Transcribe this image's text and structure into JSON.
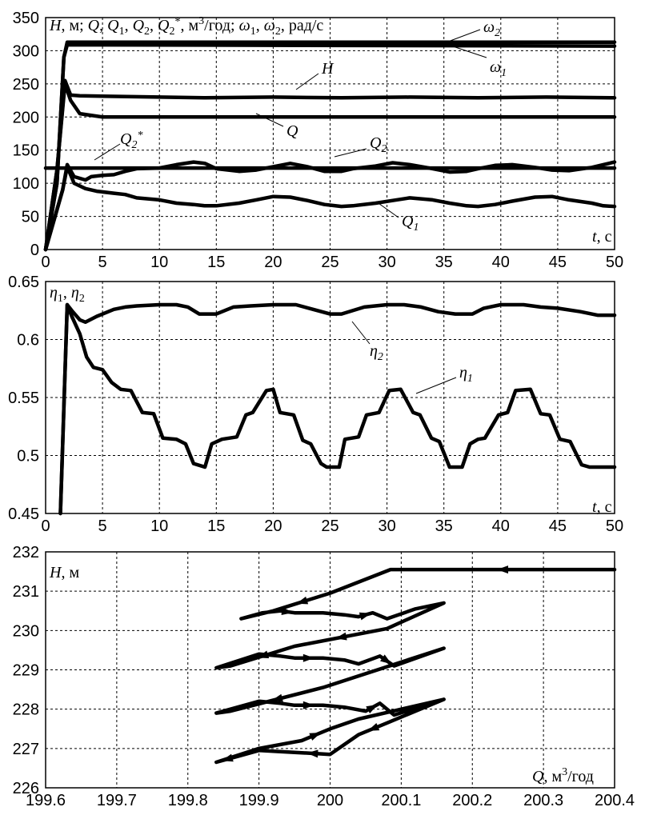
{
  "chart_data": [
    {
      "type": "line",
      "ylabel": "H, м; Q, Q1, Q2, Q2*, м3/год; ω1, ω2, рад/с",
      "xlabel": "t, с",
      "xlim": [
        0,
        50
      ],
      "ylim": [
        0,
        350
      ],
      "xticks": [
        "0",
        "5",
        "10",
        "15",
        "20",
        "25",
        "30",
        "35",
        "40",
        "45",
        "50"
      ],
      "yticks": [
        "0",
        "50",
        "100",
        "150",
        "200",
        "250",
        "300",
        "350"
      ],
      "grid": true,
      "series": [
        {
          "name": "ω2",
          "x": [
            0,
            1.0,
            1.6,
            1.9,
            50
          ],
          "y": [
            0,
            100,
            290,
            313,
            313
          ]
        },
        {
          "name": "ω1",
          "x": [
            0,
            1.0,
            1.6,
            1.9,
            50
          ],
          "y": [
            0,
            100,
            290,
            309,
            307
          ]
        },
        {
          "name": "H",
          "x": [
            0,
            1.0,
            1.7,
            2.2,
            3,
            10,
            14,
            20,
            26,
            32,
            38,
            44,
            50
          ],
          "y": [
            0,
            120,
            255,
            233,
            232,
            230,
            229,
            230,
            229,
            230,
            229,
            230,
            229
          ]
        },
        {
          "name": "Q",
          "x": [
            0,
            1.0,
            1.7,
            2.2,
            3,
            5,
            50
          ],
          "y": [
            0,
            120,
            250,
            225,
            205,
            200,
            200
          ]
        },
        {
          "name": "Q2*",
          "x": [
            0,
            50
          ],
          "y": [
            123,
            123
          ]
        },
        {
          "name": "Q2",
          "x": [
            0,
            1.5,
            1.9,
            2.5,
            3.5,
            4,
            5,
            6,
            7,
            8,
            10,
            11.5,
            13,
            14,
            15,
            17,
            18.5,
            20,
            21.5,
            23,
            24.5,
            26,
            27,
            29,
            30.5,
            32,
            34,
            35.5,
            37,
            38,
            39.5,
            41,
            43,
            44.5,
            46,
            48,
            49,
            50
          ],
          "y": [
            0,
            90,
            128,
            110,
            105,
            110,
            112,
            113,
            118,
            122,
            123,
            128,
            132,
            130,
            122,
            118,
            120,
            125,
            130,
            125,
            118,
            118,
            122,
            126,
            131,
            128,
            122,
            117,
            118,
            122,
            127,
            128,
            124,
            120,
            119,
            124,
            128,
            132
          ]
        },
        {
          "name": "Q1",
          "x": [
            0,
            1.5,
            1.9,
            2.5,
            3.5,
            4.5,
            6,
            7,
            8,
            10,
            11.5,
            13,
            14,
            15,
            17,
            18.5,
            20,
            21.5,
            23,
            24.5,
            26,
            27,
            29,
            30.5,
            32,
            34,
            35.5,
            37,
            38,
            39.5,
            41,
            43,
            44.5,
            46,
            48,
            49,
            50
          ],
          "y": [
            0,
            90,
            125,
            100,
            92,
            88,
            85,
            83,
            78,
            75,
            70,
            68,
            66,
            66,
            70,
            75,
            80,
            79,
            74,
            68,
            65,
            66,
            70,
            74,
            78,
            75,
            70,
            66,
            65,
            68,
            73,
            79,
            80,
            75,
            70,
            66,
            65
          ]
        }
      ]
    },
    {
      "type": "line",
      "ylabel": "η1, η2",
      "xlabel": "t, с",
      "xlim": [
        0,
        50
      ],
      "ylim": [
        0.45,
        0.65
      ],
      "xticks": [
        "0",
        "5",
        "10",
        "15",
        "20",
        "25",
        "30",
        "35",
        "40",
        "45",
        "50"
      ],
      "yticks": [
        "0.45",
        "0.5",
        "0.55",
        "0.6",
        "0.65"
      ],
      "grid": true,
      "series": [
        {
          "name": "η2",
          "x": [
            1.3,
            1.9,
            2.3,
            3,
            3.5,
            4.5,
            6,
            7,
            8,
            10,
            11.5,
            12.5,
            13.5,
            15,
            16.5,
            18,
            20,
            22,
            23.5,
            25,
            26,
            28,
            30,
            31.5,
            33,
            34.5,
            36,
            37.5,
            38.5,
            40,
            42,
            43.5,
            45,
            47,
            48.5,
            50
          ],
          "y": [
            0.45,
            0.63,
            0.625,
            0.617,
            0.615,
            0.62,
            0.626,
            0.628,
            0.629,
            0.63,
            0.63,
            0.628,
            0.622,
            0.622,
            0.628,
            0.629,
            0.63,
            0.63,
            0.626,
            0.622,
            0.622,
            0.628,
            0.63,
            0.63,
            0.628,
            0.624,
            0.622,
            0.622,
            0.627,
            0.63,
            0.63,
            0.628,
            0.627,
            0.624,
            0.621,
            0.621
          ]
        },
        {
          "name": "η1",
          "x": [
            1.3,
            1.9,
            2.3,
            3,
            3.6,
            4.2,
            5,
            5.8,
            6.6,
            7.5,
            8.5,
            9.5,
            10.3,
            11.5,
            12.3,
            13,
            14,
            14.6,
            15.5,
            16.8,
            17.6,
            18.2,
            19.4,
            20,
            20.6,
            21.8,
            22.6,
            23.3,
            24.2,
            24.7,
            25.8,
            26.3,
            27.5,
            28.2,
            29.3,
            30.2,
            31.2,
            32.3,
            32.9,
            33.9,
            34.6,
            35.5,
            36.6,
            37.3,
            38,
            38.6,
            39.8,
            40.6,
            41.3,
            42.6,
            43.5,
            44.3,
            45.2,
            46.1,
            47.1,
            47.8,
            49,
            50
          ],
          "y": [
            0.45,
            0.63,
            0.62,
            0.605,
            0.585,
            0.576,
            0.574,
            0.563,
            0.557,
            0.556,
            0.537,
            0.536,
            0.515,
            0.514,
            0.51,
            0.493,
            0.49,
            0.51,
            0.514,
            0.516,
            0.535,
            0.537,
            0.556,
            0.557,
            0.537,
            0.535,
            0.513,
            0.51,
            0.493,
            0.49,
            0.49,
            0.514,
            0.516,
            0.535,
            0.537,
            0.556,
            0.557,
            0.537,
            0.535,
            0.515,
            0.512,
            0.49,
            0.49,
            0.51,
            0.514,
            0.515,
            0.535,
            0.537,
            0.556,
            0.557,
            0.536,
            0.535,
            0.514,
            0.512,
            0.492,
            0.49,
            0.49,
            0.49
          ]
        }
      ],
      "annotations": [
        "η2",
        "η1"
      ]
    },
    {
      "type": "line",
      "ylabel": "H, м",
      "xlabel": "Q, м3/год",
      "xlim": [
        199.6,
        200.4
      ],
      "ylim": [
        226,
        232
      ],
      "xticks": [
        "199.6",
        "199.7",
        "199.8",
        "199.9",
        "200",
        "200.1",
        "200.2",
        "200.3",
        "200.4"
      ],
      "yticks": [
        "226",
        "227",
        "228",
        "229",
        "230",
        "231",
        "232"
      ],
      "grid": true,
      "series": [
        {
          "name": "H(Q)",
          "x": [
            200.4,
            200.085,
            200.0,
            199.92,
            199.875,
            199.905,
            199.93,
            199.95,
            199.99,
            200.02,
            200.04,
            200.06,
            200.08,
            200.12,
            200.16,
            200.08,
            199.95,
            199.86,
            199.84,
            199.9,
            199.93,
            199.95,
            199.99,
            200.02,
            200.04,
            200.07,
            200.09,
            200.16,
            199.99,
            199.86,
            199.84,
            199.9,
            199.93,
            199.95,
            199.99,
            200.02,
            200.05,
            200.07,
            200.09,
            200.16,
            200.08,
            200.04,
            200.0,
            199.95,
            199.9,
            199.87,
            199.84,
            199.9,
            199.96,
            200.0,
            200.04,
            200.16
          ],
          "y": [
            231.55,
            231.55,
            230.95,
            230.5,
            230.3,
            230.45,
            230.5,
            230.45,
            230.45,
            230.4,
            230.35,
            230.45,
            230.3,
            230.55,
            230.7,
            230.05,
            229.6,
            229.1,
            229.05,
            229.4,
            229.35,
            229.3,
            229.3,
            229.25,
            229.15,
            229.35,
            229.1,
            229.55,
            228.55,
            227.95,
            227.9,
            228.2,
            228.15,
            228.1,
            228.1,
            228.05,
            227.95,
            228.15,
            227.85,
            228.25,
            227.65,
            227.35,
            226.85,
            226.9,
            226.95,
            226.8,
            226.65,
            227.0,
            227.2,
            227.5,
            227.75,
            228.25
          ]
        }
      ]
    }
  ]
}
